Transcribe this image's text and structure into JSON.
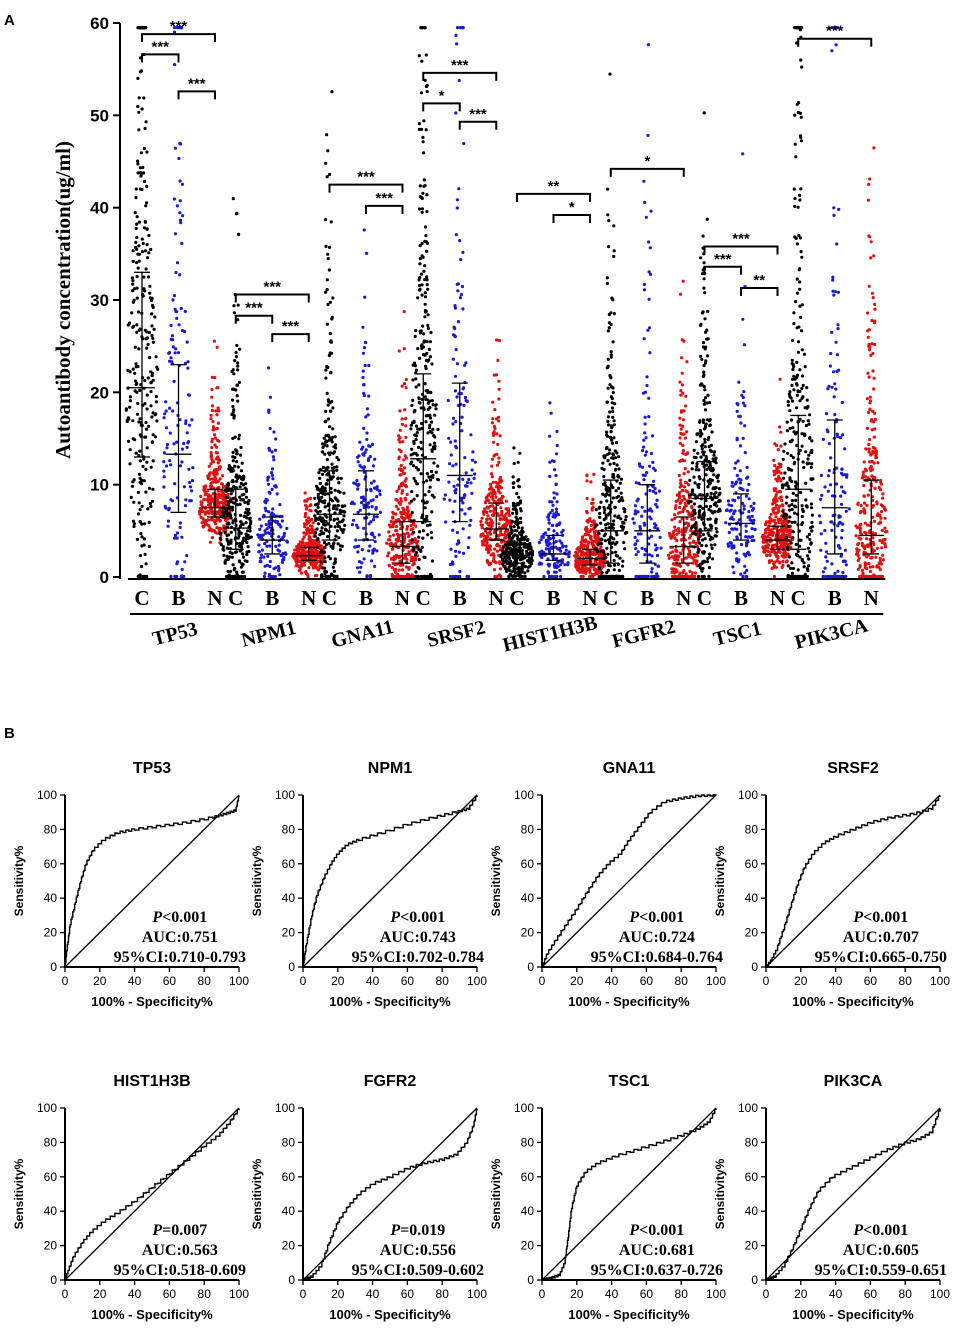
{
  "panels": {
    "a_label": "A",
    "b_label": "B"
  },
  "chart_data": [
    {
      "type": "scatter",
      "title": "",
      "ylabel": "Autoantibody concentration(ug/ml)",
      "ylim": [
        0,
        60
      ],
      "yticks": [
        0,
        10,
        20,
        30,
        40,
        50,
        60
      ],
      "group_labels": [
        "C",
        "B",
        "N"
      ],
      "group_colors": {
        "C": "#000000",
        "B": "#1a1ad6",
        "N": "#e01010"
      },
      "antigens": [
        {
          "name": "TP53",
          "median": [
            20.5,
            13.3,
            7.5
          ],
          "iqr": [
            [
              13,
              33
            ],
            [
              7,
              23
            ],
            [
              6.5,
              9.5
            ]
          ],
          "n": [
            300,
            140,
            290
          ],
          "sig": [
            {
              "pair": [
                "C",
                "N"
              ],
              "label": "***",
              "y": 58.8
            },
            {
              "pair": [
                "C",
                "B"
              ],
              "label": "***",
              "y": 56.6
            },
            {
              "pair": [
                "B",
                "N"
              ],
              "label": "***",
              "y": 52.6
            }
          ]
        },
        {
          "name": "NPM1",
          "median": [
            5.3,
            4.0,
            2.3
          ],
          "iqr": [
            [
              3,
              9.5
            ],
            [
              2.5,
              6.5
            ],
            [
              1.8,
              3.2
            ]
          ],
          "n": [
            300,
            140,
            290
          ],
          "sig": [
            {
              "pair": [
                "C",
                "N"
              ],
              "label": "***",
              "y": 30.6
            },
            {
              "pair": [
                "C",
                "B"
              ],
              "label": "***",
              "y": 28.3
            },
            {
              "pair": [
                "B",
                "N"
              ],
              "label": "***",
              "y": 26.3
            }
          ]
        },
        {
          "name": "GNA11",
          "median": [
            6.8,
            6.8,
            3.3
          ],
          "iqr": [
            [
              4,
              11.5
            ],
            [
              4,
              11.5
            ],
            [
              1.5,
              6
            ]
          ],
          "n": [
            300,
            140,
            290
          ],
          "sig": [
            {
              "pair": [
                "C",
                "N"
              ],
              "label": "***",
              "y": 42.5
            },
            {
              "pair": [
                "B",
                "N"
              ],
              "label": "***",
              "y": 40.2
            }
          ]
        },
        {
          "name": "SRSF2",
          "median": [
            12.8,
            11.0,
            5.2
          ],
          "iqr": [
            [
              6,
              22
            ],
            [
              6,
              21
            ],
            [
              4,
              8
            ]
          ],
          "n": [
            300,
            140,
            290
          ],
          "sig": [
            {
              "pair": [
                "C",
                "N"
              ],
              "label": "***",
              "y": 54.6
            },
            {
              "pair": [
                "C",
                "B"
              ],
              "label": "*",
              "y": 51.3
            },
            {
              "pair": [
                "B",
                "N"
              ],
              "label": "***",
              "y": 49.3
            }
          ]
        },
        {
          "name": "HIST1H3B",
          "median": [
            2.3,
            2.5,
            2.0
          ],
          "iqr": [
            [
              1.5,
              3.5
            ],
            [
              1.8,
              4.5
            ],
            [
              1.3,
              3
            ]
          ],
          "n": [
            300,
            140,
            290
          ],
          "sig": [
            {
              "pair": [
                "C",
                "N"
              ],
              "label": "**",
              "y": 41.5
            },
            {
              "pair": [
                "B",
                "N"
              ],
              "label": "*",
              "y": 39.2
            }
          ]
        },
        {
          "name": "FGFR2",
          "median": [
            5.0,
            5.0,
            3.3
          ],
          "iqr": [
            [
              1.5,
              10.5
            ],
            [
              1.5,
              10
            ],
            [
              1.5,
              6.5
            ]
          ],
          "n": [
            300,
            140,
            290
          ],
          "sig": [
            {
              "pair": [
                "C",
                "N"
              ],
              "label": "*",
              "y": 44.2
            }
          ]
        },
        {
          "name": "TSC1",
          "median": [
            8.5,
            5.8,
            4.0
          ],
          "iqr": [
            [
              5,
              12.5
            ],
            [
              4,
              9
            ],
            [
              3,
              5.5
            ]
          ],
          "n": [
            300,
            140,
            290
          ],
          "sig": [
            {
              "pair": [
                "C",
                "N"
              ],
              "label": "***",
              "y": 35.8
            },
            {
              "pair": [
                "C",
                "B"
              ],
              "label": "***",
              "y": 33.6
            },
            {
              "pair": [
                "B",
                "N"
              ],
              "label": "**",
              "y": 31.3
            }
          ]
        },
        {
          "name": "PIK3CA",
          "median": [
            9.5,
            7.5,
            4.5
          ],
          "iqr": [
            [
              3,
              17.5
            ],
            [
              2.5,
              17
            ],
            [
              2.5,
              10.5
            ]
          ],
          "n": [
            300,
            140,
            290
          ],
          "sig": [
            {
              "pair": [
                "C",
                "N"
              ],
              "label": "***",
              "y": 58.3
            }
          ]
        }
      ]
    },
    {
      "type": "line",
      "subtype": "roc",
      "xlabel": "100% - Specificity%",
      "ylabel": "Sensitivity%",
      "xlim": [
        0,
        100
      ],
      "ylim": [
        0,
        100
      ],
      "ticks": [
        0,
        20,
        40,
        60,
        80,
        100
      ],
      "curves": [
        {
          "name": "TP53",
          "p_label": "P",
          "p_value": "<0.001",
          "auc": "AUC:0.751",
          "ci": "95%CI:0.710-0.793",
          "points": [
            [
              0,
              0
            ],
            [
              1,
              10
            ],
            [
              3,
              25
            ],
            [
              6,
              38
            ],
            [
              9,
              50
            ],
            [
              12,
              60
            ],
            [
              16,
              68
            ],
            [
              22,
              74
            ],
            [
              30,
              78
            ],
            [
              40,
              80
            ],
            [
              55,
              82
            ],
            [
              70,
              84
            ],
            [
              85,
              87
            ],
            [
              92,
              89
            ],
            [
              98,
              91
            ],
            [
              100,
              100
            ]
          ]
        },
        {
          "name": "NPM1",
          "p_label": "P",
          "p_value": "<0.001",
          "auc": "AUC:0.743",
          "ci": "95%CI:0.702-0.784",
          "points": [
            [
              0,
              0
            ],
            [
              2,
              14
            ],
            [
              5,
              30
            ],
            [
              8,
              42
            ],
            [
              12,
              52
            ],
            [
              16,
              60
            ],
            [
              20,
              66
            ],
            [
              25,
              71
            ],
            [
              32,
              74
            ],
            [
              45,
              78
            ],
            [
              60,
              83
            ],
            [
              75,
              87
            ],
            [
              88,
              90
            ],
            [
              95,
              92
            ],
            [
              100,
              100
            ]
          ]
        },
        {
          "name": "GNA11",
          "p_label": "P",
          "p_value": "<0.001",
          "auc": "AUC:0.724",
          "ci": "95%CI:0.684-0.764",
          "points": [
            [
              0,
              0
            ],
            [
              3,
              8
            ],
            [
              8,
              16
            ],
            [
              14,
              25
            ],
            [
              20,
              34
            ],
            [
              26,
              44
            ],
            [
              32,
              53
            ],
            [
              38,
              60
            ],
            [
              45,
              66
            ],
            [
              50,
              74
            ],
            [
              56,
              82
            ],
            [
              62,
              90
            ],
            [
              70,
              96
            ],
            [
              80,
              98
            ],
            [
              90,
              99.5
            ],
            [
              100,
              100
            ]
          ]
        },
        {
          "name": "SRSF2",
          "p_label": "P",
          "p_value": "<0.001",
          "auc": "AUC:0.707",
          "ci": "95%CI:0.665-0.750",
          "points": [
            [
              0,
              0
            ],
            [
              3,
              4
            ],
            [
              6,
              10
            ],
            [
              10,
              22
            ],
            [
              14,
              35
            ],
            [
              18,
              48
            ],
            [
              22,
              58
            ],
            [
              27,
              66
            ],
            [
              33,
              72
            ],
            [
              40,
              76
            ],
            [
              50,
              80
            ],
            [
              60,
              84
            ],
            [
              72,
              87
            ],
            [
              85,
              89
            ],
            [
              95,
              92
            ],
            [
              100,
              100
            ]
          ]
        },
        {
          "name": "HIST1H3B",
          "p_label": "P",
          "p_value": "=0.007",
          "auc": "AUC:0.563",
          "ci": "95%CI:0.518-0.609",
          "points": [
            [
              0,
              0
            ],
            [
              2,
              6
            ],
            [
              5,
              14
            ],
            [
              10,
              22
            ],
            [
              15,
              28
            ],
            [
              22,
              34
            ],
            [
              30,
              39
            ],
            [
              40,
              46
            ],
            [
              50,
              54
            ],
            [
              60,
              62
            ],
            [
              70,
              70
            ],
            [
              80,
              78
            ],
            [
              88,
              84
            ],
            [
              94,
              91
            ],
            [
              100,
              100
            ]
          ]
        },
        {
          "name": "FGFR2",
          "p_label": "P",
          "p_value": "=0.019",
          "auc": "AUC:0.556",
          "ci": "95%CI:0.509-0.602",
          "points": [
            [
              0,
              0
            ],
            [
              5,
              2
            ],
            [
              10,
              8
            ],
            [
              15,
              22
            ],
            [
              20,
              34
            ],
            [
              26,
              43
            ],
            [
              32,
              50
            ],
            [
              40,
              56
            ],
            [
              50,
              60
            ],
            [
              60,
              65
            ],
            [
              70,
              68
            ],
            [
              80,
              70
            ],
            [
              88,
              73
            ],
            [
              94,
              80
            ],
            [
              98,
              90
            ],
            [
              100,
              100
            ]
          ]
        },
        {
          "name": "TSC1",
          "p_label": "P",
          "p_value": "<0.001",
          "auc": "AUC:0.681",
          "ci": "95%CI:0.637-0.726",
          "points": [
            [
              0,
              0
            ],
            [
              5,
              1
            ],
            [
              10,
              3
            ],
            [
              13,
              10
            ],
            [
              15,
              25
            ],
            [
              17,
              42
            ],
            [
              20,
              55
            ],
            [
              25,
              63
            ],
            [
              32,
              68
            ],
            [
              42,
              72
            ],
            [
              55,
              76
            ],
            [
              68,
              80
            ],
            [
              80,
              84
            ],
            [
              90,
              88
            ],
            [
              96,
              92
            ],
            [
              100,
              100
            ]
          ]
        },
        {
          "name": "PIK3CA",
          "p_label": "P",
          "p_value": "<0.001",
          "auc": "AUC:0.605",
          "ci": "95%CI:0.559-0.651",
          "points": [
            [
              0,
              0
            ],
            [
              5,
              2
            ],
            [
              10,
              8
            ],
            [
              15,
              18
            ],
            [
              20,
              30
            ],
            [
              25,
              42
            ],
            [
              30,
              52
            ],
            [
              38,
              60
            ],
            [
              48,
              65
            ],
            [
              58,
              70
            ],
            [
              68,
              75
            ],
            [
              78,
              79
            ],
            [
              88,
              82
            ],
            [
              95,
              86
            ],
            [
              100,
              100
            ]
          ]
        }
      ]
    }
  ]
}
